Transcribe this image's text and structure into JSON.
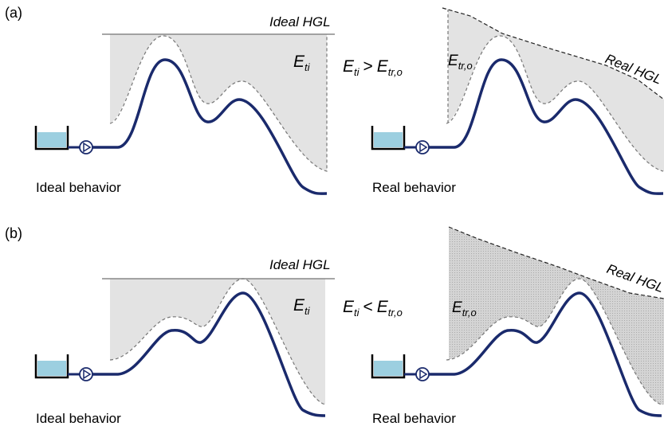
{
  "panels": [
    {
      "label": "(a)",
      "ideal_hgl": "Ideal HGL",
      "ideal_energy": {
        "symbol": "E",
        "subscript": "ti"
      },
      "comparison": {
        "left": {
          "symbol": "E",
          "subscript": "ti"
        },
        "operator": ">",
        "right": {
          "symbol": "E",
          "subscript": "tr,o"
        }
      },
      "real_energy": {
        "symbol": "E",
        "subscript": "tr,o"
      },
      "real_hgl": "Real HGL",
      "ideal_caption": "Ideal behavior",
      "real_caption": "Real behavior"
    },
    {
      "label": "(b)",
      "ideal_hgl": "Ideal HGL",
      "ideal_energy": {
        "symbol": "E",
        "subscript": "ti"
      },
      "comparison": {
        "left": {
          "symbol": "E",
          "subscript": "ti"
        },
        "operator": "<",
        "right": {
          "symbol": "E",
          "subscript": "tr,o"
        }
      },
      "real_energy": {
        "symbol": "E",
        "subscript": "tr,o"
      },
      "real_hgl": "Real HGL",
      "ideal_caption": "Ideal behavior",
      "real_caption": "Real behavior"
    }
  ]
}
